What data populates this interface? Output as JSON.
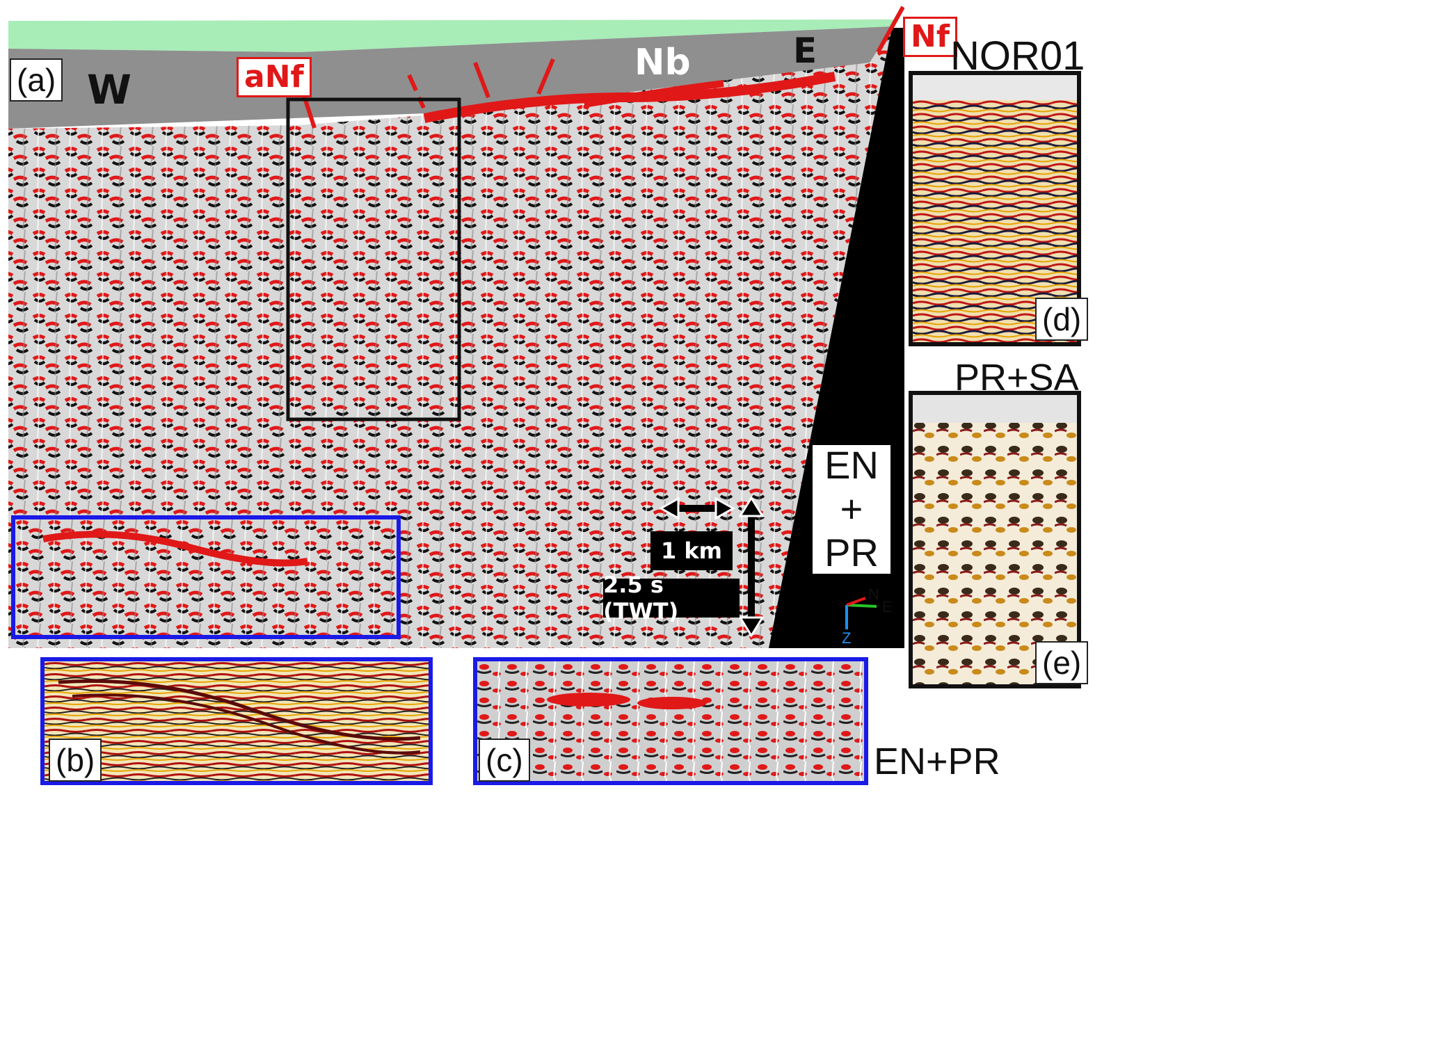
{
  "figure": {
    "panel_labels": {
      "a": "(a)",
      "b": "(b)",
      "c": "(c)",
      "d": "(d)",
      "e": "(e)"
    },
    "direction_labels": {
      "west": "W",
      "east": "E"
    },
    "fault_labels": {
      "anf": "aNf",
      "nb": "Nb",
      "nf": "Nf"
    },
    "scale": {
      "horizontal": "1 km",
      "vertical": "2.5 s (TWT)"
    },
    "method_label_main": {
      "line1": "EN",
      "line2": "+",
      "line3": "PR"
    },
    "method_label_c": "EN+PR",
    "panel_titles": {
      "d": "NOR01",
      "e": "PR+SA"
    },
    "axes_triad": {
      "north": "N",
      "east": "E",
      "z": "Z"
    },
    "colors": {
      "blue_frame": "#1a1ae6",
      "red_horizon": "#e01818",
      "sea_green": "#a8ecb8",
      "dark_outline": "#111111"
    }
  }
}
